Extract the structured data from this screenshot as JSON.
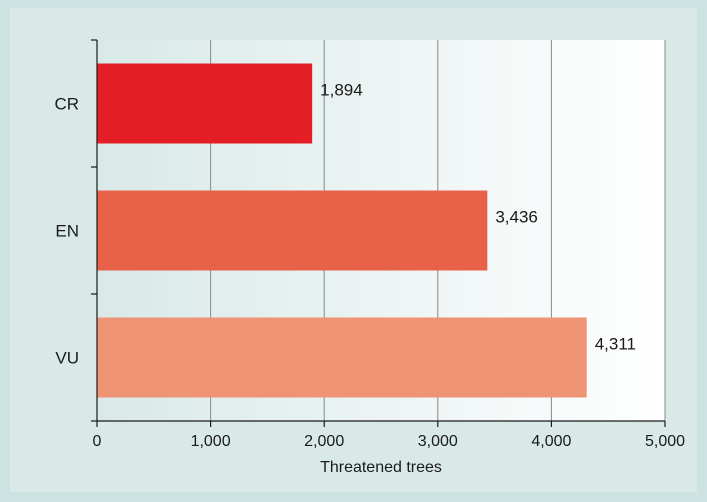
{
  "chart_data": {
    "type": "bar",
    "orientation": "horizontal",
    "categories": [
      "CR",
      "EN",
      "VU"
    ],
    "values": [
      1894,
      3436,
      4311
    ],
    "value_labels": [
      "1,894",
      "3,436",
      "4,311"
    ],
    "colors": [
      "#e31e24",
      "#e8624a",
      "#ef9375"
    ],
    "xlabel": "Threatened trees",
    "ylabel": "",
    "xlim": [
      0,
      5000
    ],
    "xticks": [
      0,
      1000,
      2000,
      3000,
      4000,
      5000
    ],
    "xtick_labels": [
      "0",
      "1,000",
      "2,000",
      "3,000",
      "4,000",
      "5,000"
    ],
    "grid": "vertical",
    "background_gradient": [
      "#d9e9e8",
      "#ffffff"
    ]
  }
}
